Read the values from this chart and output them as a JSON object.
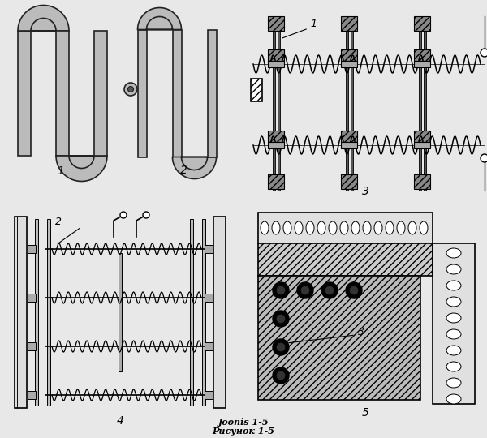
{
  "bg_color": "#e8e8e8",
  "fig_bg": "#e8e8e8",
  "title_line1": "Joonis 1-5",
  "title_line2": "Рисунок 1-5",
  "label1": "1",
  "label2": "2",
  "label3": "3",
  "label4": "4",
  "label5": "5",
  "wire_color": "#bbbbbb",
  "wire_edge": "#222222",
  "dark_gray": "#444444",
  "mid_gray": "#888888",
  "light_gray": "#cccccc"
}
